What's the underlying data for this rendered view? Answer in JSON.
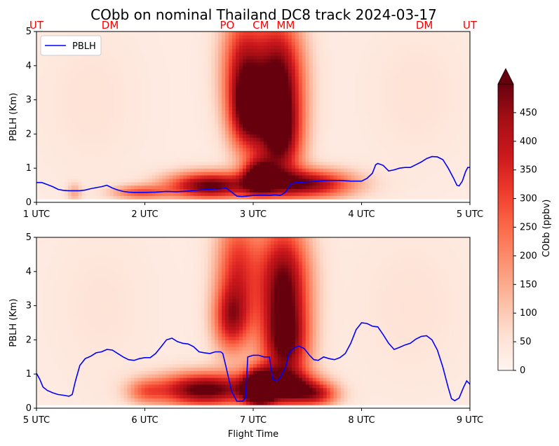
{
  "chart_data": {
    "type": "heatmap",
    "title": "CObb on nominal Thailand DC8 track 2024-03-17",
    "xlabel": "Flight Time",
    "ylabel": "PBLH (Km)",
    "ylim": [
      0,
      5
    ],
    "yticks": [
      "0",
      "1",
      "2",
      "3",
      "4",
      "5"
    ],
    "legend": {
      "placement": "upper-left",
      "label": "PBLH",
      "color": "#0000ff"
    },
    "station_color": "#ff0000",
    "colorbar": {
      "label": "CObb (ppbv)",
      "colormap": "Reds",
      "range": [
        0,
        500
      ],
      "extend": "max",
      "ticks": [
        "0",
        "50",
        "100",
        "150",
        "200",
        "250",
        "300",
        "350",
        "400",
        "450"
      ]
    },
    "panels": [
      {
        "xlim": [
          1,
          5
        ],
        "xticks": [
          {
            "v": 1,
            "label": "1 UTC"
          },
          {
            "v": 2,
            "label": "2 UTC"
          },
          {
            "v": 3,
            "label": "3 UTC"
          },
          {
            "v": 4,
            "label": "4 UTC"
          },
          {
            "v": 5,
            "label": "5 UTC"
          }
        ],
        "stations": [
          {
            "label": "UT",
            "t": 1.0
          },
          {
            "label": "DM",
            "t": 1.68
          },
          {
            "label": "PO",
            "t": 2.76
          },
          {
            "label": "CM",
            "t": 3.07
          },
          {
            "label": "MM",
            "t": 3.3
          },
          {
            "label": "DM",
            "t": 4.58
          },
          {
            "label": "UT",
            "t": 5.0
          }
        ],
        "blobs": [
          {
            "t": 2.9,
            "z": 4.0,
            "st": 0.14,
            "sz": 1.2,
            "v": 330
          },
          {
            "t": 2.95,
            "z": 2.6,
            "st": 0.12,
            "sz": 0.8,
            "v": 360
          },
          {
            "t": 3.24,
            "z": 3.6,
            "st": 0.16,
            "sz": 1.3,
            "v": 470
          },
          {
            "t": 3.25,
            "z": 1.8,
            "st": 0.14,
            "sz": 0.9,
            "v": 360
          },
          {
            "t": 2.6,
            "z": 0.5,
            "st": 0.28,
            "sz": 0.28,
            "v": 480
          },
          {
            "t": 3.5,
            "z": 0.55,
            "st": 0.3,
            "sz": 0.3,
            "v": 430
          },
          {
            "t": 3.05,
            "z": 0.75,
            "st": 0.1,
            "sz": 0.35,
            "v": 430
          },
          {
            "t": 1.95,
            "z": 0.3,
            "st": 0.18,
            "sz": 0.15,
            "v": 230
          },
          {
            "t": 1.35,
            "z": 0.3,
            "st": 0.05,
            "sz": 0.2,
            "v": 120
          },
          {
            "t": 1.5,
            "z": 3.0,
            "st": 0.3,
            "sz": 1.4,
            "v": 25
          },
          {
            "t": 4.5,
            "z": 3.2,
            "st": 0.3,
            "sz": 1.3,
            "v": 25
          }
        ],
        "pblh": [
          [
            1.0,
            0.58
          ],
          [
            1.05,
            0.58
          ],
          [
            1.1,
            0.52
          ],
          [
            1.15,
            0.46
          ],
          [
            1.2,
            0.38
          ],
          [
            1.25,
            0.35
          ],
          [
            1.3,
            0.34
          ],
          [
            1.35,
            0.34
          ],
          [
            1.4,
            0.34
          ],
          [
            1.45,
            0.36
          ],
          [
            1.5,
            0.4
          ],
          [
            1.55,
            0.43
          ],
          [
            1.6,
            0.46
          ],
          [
            1.65,
            0.5
          ],
          [
            1.7,
            0.42
          ],
          [
            1.75,
            0.36
          ],
          [
            1.8,
            0.32
          ],
          [
            1.85,
            0.3
          ],
          [
            1.9,
            0.29
          ],
          [
            1.95,
            0.29
          ],
          [
            2.0,
            0.29
          ],
          [
            2.1,
            0.3
          ],
          [
            2.2,
            0.32
          ],
          [
            2.3,
            0.31
          ],
          [
            2.4,
            0.33
          ],
          [
            2.5,
            0.36
          ],
          [
            2.6,
            0.38
          ],
          [
            2.7,
            0.4
          ],
          [
            2.75,
            0.42
          ],
          [
            2.8,
            0.3
          ],
          [
            2.85,
            0.18
          ],
          [
            2.9,
            0.17
          ],
          [
            3.0,
            0.2
          ],
          [
            3.1,
            0.21
          ],
          [
            3.15,
            0.2
          ],
          [
            3.2,
            0.22
          ],
          [
            3.25,
            0.2
          ],
          [
            3.3,
            0.3
          ],
          [
            3.35,
            0.55
          ],
          [
            3.4,
            0.58
          ],
          [
            3.5,
            0.6
          ],
          [
            3.6,
            0.62
          ],
          [
            3.7,
            0.64
          ],
          [
            3.8,
            0.64
          ],
          [
            3.9,
            0.62
          ],
          [
            4.0,
            0.62
          ],
          [
            4.05,
            0.7
          ],
          [
            4.1,
            0.85
          ],
          [
            4.13,
            1.1
          ],
          [
            4.15,
            1.14
          ],
          [
            4.2,
            1.08
          ],
          [
            4.25,
            0.92
          ],
          [
            4.3,
            0.95
          ],
          [
            4.35,
            1.0
          ],
          [
            4.4,
            1.02
          ],
          [
            4.45,
            1.02
          ],
          [
            4.5,
            1.1
          ],
          [
            4.55,
            1.18
          ],
          [
            4.6,
            1.28
          ],
          [
            4.65,
            1.34
          ],
          [
            4.7,
            1.33
          ],
          [
            4.75,
            1.25
          ],
          [
            4.8,
            1.0
          ],
          [
            4.85,
            0.7
          ],
          [
            4.88,
            0.5
          ],
          [
            4.9,
            0.48
          ],
          [
            4.93,
            0.62
          ],
          [
            4.96,
            0.9
          ],
          [
            4.98,
            1.02
          ],
          [
            5.0,
            1.02
          ]
        ]
      },
      {
        "xlim": [
          5,
          9
        ],
        "xticks": [
          {
            "v": 5,
            "label": "5 UTC"
          },
          {
            "v": 6,
            "label": "6 UTC"
          },
          {
            "v": 7,
            "label": "7 UTC"
          },
          {
            "v": 8,
            "label": "8 UTC"
          },
          {
            "v": 9,
            "label": "9 UTC"
          }
        ],
        "stations": [],
        "blobs": [
          {
            "t": 6.85,
            "z": 4.2,
            "st": 0.14,
            "sz": 1.1,
            "v": 280
          },
          {
            "t": 6.8,
            "z": 2.6,
            "st": 0.12,
            "sz": 0.7,
            "v": 330
          },
          {
            "t": 7.28,
            "z": 3.6,
            "st": 0.17,
            "sz": 1.3,
            "v": 470
          },
          {
            "t": 7.3,
            "z": 1.8,
            "st": 0.15,
            "sz": 0.8,
            "v": 340
          },
          {
            "t": 6.55,
            "z": 0.55,
            "st": 0.32,
            "sz": 0.35,
            "v": 500
          },
          {
            "t": 7.3,
            "z": 0.6,
            "st": 0.22,
            "sz": 0.35,
            "v": 430
          },
          {
            "t": 7.05,
            "z": 0.6,
            "st": 0.1,
            "sz": 0.4,
            "v": 480
          },
          {
            "t": 7.6,
            "z": 0.4,
            "st": 0.14,
            "sz": 0.25,
            "v": 250
          },
          {
            "t": 6.0,
            "z": 0.5,
            "st": 0.12,
            "sz": 0.25,
            "v": 150
          },
          {
            "t": 5.6,
            "z": 3.0,
            "st": 0.3,
            "sz": 1.5,
            "v": 22
          },
          {
            "t": 8.45,
            "z": 3.0,
            "st": 0.35,
            "sz": 1.5,
            "v": 25
          }
        ],
        "pblh": [
          [
            5.0,
            1.02
          ],
          [
            5.03,
            0.85
          ],
          [
            5.06,
            0.62
          ],
          [
            5.1,
            0.52
          ],
          [
            5.15,
            0.45
          ],
          [
            5.2,
            0.4
          ],
          [
            5.25,
            0.38
          ],
          [
            5.3,
            0.35
          ],
          [
            5.33,
            0.4
          ],
          [
            5.36,
            0.8
          ],
          [
            5.4,
            1.25
          ],
          [
            5.45,
            1.45
          ],
          [
            5.5,
            1.52
          ],
          [
            5.55,
            1.62
          ],
          [
            5.6,
            1.65
          ],
          [
            5.65,
            1.72
          ],
          [
            5.7,
            1.7
          ],
          [
            5.75,
            1.6
          ],
          [
            5.8,
            1.5
          ],
          [
            5.85,
            1.42
          ],
          [
            5.9,
            1.4
          ],
          [
            5.95,
            1.45
          ],
          [
            6.0,
            1.48
          ],
          [
            6.05,
            1.48
          ],
          [
            6.1,
            1.6
          ],
          [
            6.15,
            1.8
          ],
          [
            6.2,
            2.0
          ],
          [
            6.25,
            2.05
          ],
          [
            6.3,
            1.95
          ],
          [
            6.35,
            1.9
          ],
          [
            6.4,
            1.88
          ],
          [
            6.45,
            1.8
          ],
          [
            6.5,
            1.65
          ],
          [
            6.55,
            1.62
          ],
          [
            6.6,
            1.6
          ],
          [
            6.65,
            1.65
          ],
          [
            6.7,
            1.65
          ],
          [
            6.72,
            1.6
          ],
          [
            6.75,
            1.2
          ],
          [
            6.8,
            0.5
          ],
          [
            6.85,
            0.2
          ],
          [
            6.9,
            0.2
          ],
          [
            6.93,
            0.3
          ],
          [
            6.95,
            1.5
          ],
          [
            7.0,
            1.55
          ],
          [
            7.05,
            1.55
          ],
          [
            7.1,
            1.5
          ],
          [
            7.15,
            1.5
          ],
          [
            7.18,
            0.85
          ],
          [
            7.22,
            0.8
          ],
          [
            7.25,
            0.9
          ],
          [
            7.3,
            1.2
          ],
          [
            7.33,
            1.6
          ],
          [
            7.37,
            1.75
          ],
          [
            7.42,
            1.82
          ],
          [
            7.47,
            1.75
          ],
          [
            7.52,
            1.55
          ],
          [
            7.56,
            1.42
          ],
          [
            7.6,
            1.4
          ],
          [
            7.65,
            1.5
          ],
          [
            7.7,
            1.45
          ],
          [
            7.75,
            1.42
          ],
          [
            7.8,
            1.48
          ],
          [
            7.85,
            1.6
          ],
          [
            7.9,
            1.9
          ],
          [
            7.95,
            2.3
          ],
          [
            8.0,
            2.5
          ],
          [
            8.05,
            2.48
          ],
          [
            8.1,
            2.4
          ],
          [
            8.15,
            2.38
          ],
          [
            8.2,
            2.15
          ],
          [
            8.25,
            1.9
          ],
          [
            8.3,
            1.72
          ],
          [
            8.35,
            1.78
          ],
          [
            8.4,
            1.85
          ],
          [
            8.45,
            1.9
          ],
          [
            8.5,
            2.02
          ],
          [
            8.55,
            2.1
          ],
          [
            8.6,
            2.12
          ],
          [
            8.65,
            2.0
          ],
          [
            8.7,
            1.7
          ],
          [
            8.75,
            1.2
          ],
          [
            8.8,
            0.6
          ],
          [
            8.83,
            0.28
          ],
          [
            8.86,
            0.22
          ],
          [
            8.9,
            0.3
          ],
          [
            8.94,
            0.6
          ],
          [
            8.97,
            0.8
          ],
          [
            9.0,
            0.7
          ]
        ]
      }
    ]
  }
}
